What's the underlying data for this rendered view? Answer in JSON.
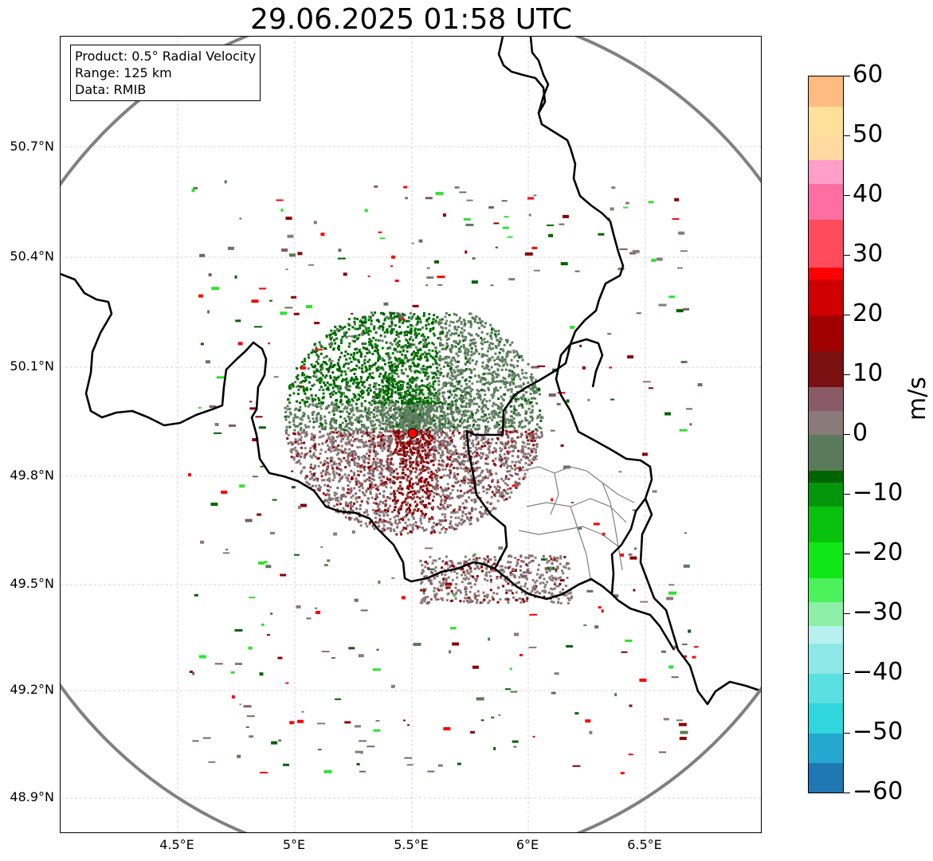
{
  "title": "29.06.2025 01:58 UTC",
  "info": {
    "product": "Product: 0.5° Radial Velocity",
    "range": "Range: 125 km",
    "data": "Data: RMIB"
  },
  "lat_labels": [
    "50.7°N",
    "50.4°N",
    "50.1°N",
    "49.8°N",
    "49.5°N",
    "49.2°N",
    "48.9°N"
  ],
  "lon_labels": [
    "4.5°E",
    "5°E",
    "5.5°E",
    "6°E",
    "6.5°E"
  ],
  "colorbar": {
    "unit": "m/s",
    "min": -60,
    "max": 60,
    "ticks": [
      "60",
      "50",
      "40",
      "30",
      "20",
      "10",
      "0",
      "−10",
      "−20",
      "−30",
      "−40",
      "−50",
      "−60"
    ],
    "stops": [
      [
        "-60",
        "#1f77b4"
      ],
      [
        "-55",
        "#25a8cf"
      ],
      [
        "-50",
        "#2fd6dc"
      ],
      [
        "-45",
        "#5ae0e0"
      ],
      [
        "-40",
        "#8ee8e8"
      ],
      [
        "-35",
        "#b8f0f0"
      ],
      [
        "-32",
        "#8ef0a8"
      ],
      [
        "-28",
        "#4cf25c"
      ],
      [
        "-24",
        "#0fe816"
      ],
      [
        "-18",
        "#08c10d"
      ],
      [
        "-12",
        "#03960a"
      ],
      [
        "-8",
        "#006400"
      ],
      [
        "-6",
        "#5b7a5b"
      ],
      [
        "0",
        "#8a7a7a"
      ],
      [
        "4",
        "#8a5a66"
      ],
      [
        "8",
        "#7a1010"
      ],
      [
        "14",
        "#a00000"
      ],
      [
        "20",
        "#d00000"
      ],
      [
        "26",
        "#ff0000"
      ],
      [
        "28",
        "#ff4b5c"
      ],
      [
        "36",
        "#ff6ea0"
      ],
      [
        "42",
        "#ff9ec8"
      ],
      [
        "46",
        "#ffd9a0"
      ],
      [
        "50",
        "#ffe09a"
      ],
      [
        "55",
        "#ffbb80"
      ],
      [
        "60",
        "#ff9955"
      ]
    ]
  },
  "colors": {
    "range_ring": "#808080",
    "border": "#000000",
    "subdivision": "#808080",
    "radar_site": "#ff0000"
  }
}
